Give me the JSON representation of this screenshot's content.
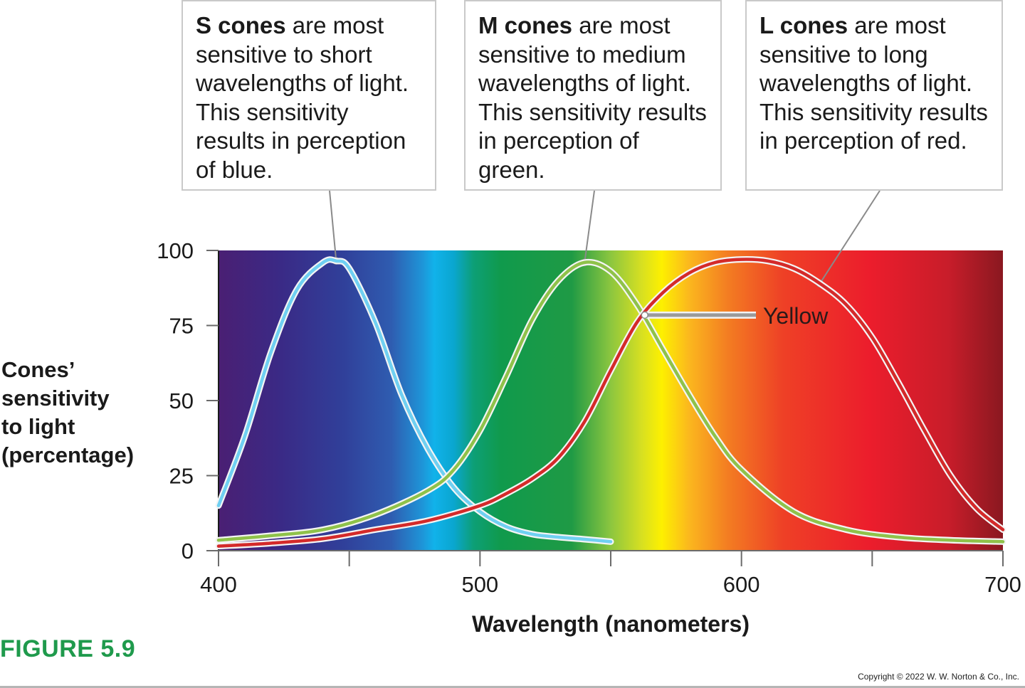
{
  "callouts": {
    "s": {
      "bold": "S cones",
      "text": "are most sensitive to short wavelengths of light. This sensitivity results in perception of blue."
    },
    "m": {
      "bold": "M cones",
      "text": "are most sensitive to medium wavelengths of light. This sensitivity results in perception of green."
    },
    "l": {
      "bold": "L cones",
      "text": "are most sensitive to long wavelengths of light. This sensitivity results in perception of red."
    }
  },
  "ylabel_lines": [
    "Cones’",
    "sensitivity",
    "to light",
    "(percentage)"
  ],
  "figure_label": "FIGURE 5.9",
  "copyright": "Copyright © 2022 W. W. Norton & Co., Inc.",
  "chart_data": {
    "type": "line",
    "xlabel": "Wavelength (nanometers)",
    "ylabel": "Cones’ sensitivity to light (percentage)",
    "xlim": [
      400,
      700
    ],
    "ylim": [
      0,
      100
    ],
    "x_ticks": [
      400,
      500,
      600,
      700
    ],
    "x_minor_ticks": [
      450,
      550,
      650
    ],
    "y_ticks": [
      0,
      25,
      50,
      75,
      100
    ],
    "grid": false,
    "background": "visible-light spectrum gradient (violet to red)",
    "series": [
      {
        "id": "s",
        "color": "#6fd0f2",
        "x": [
          400,
          410,
          420,
          430,
          440,
          445,
          450,
          460,
          470,
          480,
          490,
          500,
          510,
          520,
          530,
          540,
          550
        ],
        "y": [
          15,
          38,
          66,
          87,
          96,
          96.5,
          94,
          76,
          52,
          34,
          21,
          13,
          8,
          5.5,
          4.5,
          3.8,
          3
        ]
      },
      {
        "id": "m",
        "color": "#8fc24a",
        "x": [
          400,
          420,
          440,
          460,
          480,
          490,
          500,
          510,
          520,
          530,
          540,
          550,
          560,
          570,
          580,
          590,
          600,
          620,
          640,
          660,
          680,
          700
        ],
        "y": [
          3.5,
          5,
          7,
          12,
          20,
          27,
          40,
          58,
          77,
          90,
          96,
          93,
          82,
          67,
          52,
          38,
          27,
          13,
          7,
          4.5,
          3.5,
          3
        ]
      },
      {
        "id": "l",
        "color": "#d42a2a",
        "x": [
          400,
          420,
          440,
          460,
          480,
          500,
          510,
          520,
          530,
          540,
          550,
          560,
          570,
          580,
          590,
          600,
          610,
          620,
          630,
          640,
          650,
          660,
          670,
          680,
          690,
          700
        ],
        "y": [
          1.5,
          2.5,
          4,
          7,
          10,
          15,
          19,
          24,
          31,
          43,
          60,
          76,
          86,
          92.5,
          96,
          97,
          96.5,
          94,
          89,
          82,
          71,
          56,
          40,
          25,
          14,
          7
        ]
      }
    ],
    "annotations": [
      {
        "text": "Yellow",
        "x": 563,
        "y": 78
      }
    ]
  }
}
